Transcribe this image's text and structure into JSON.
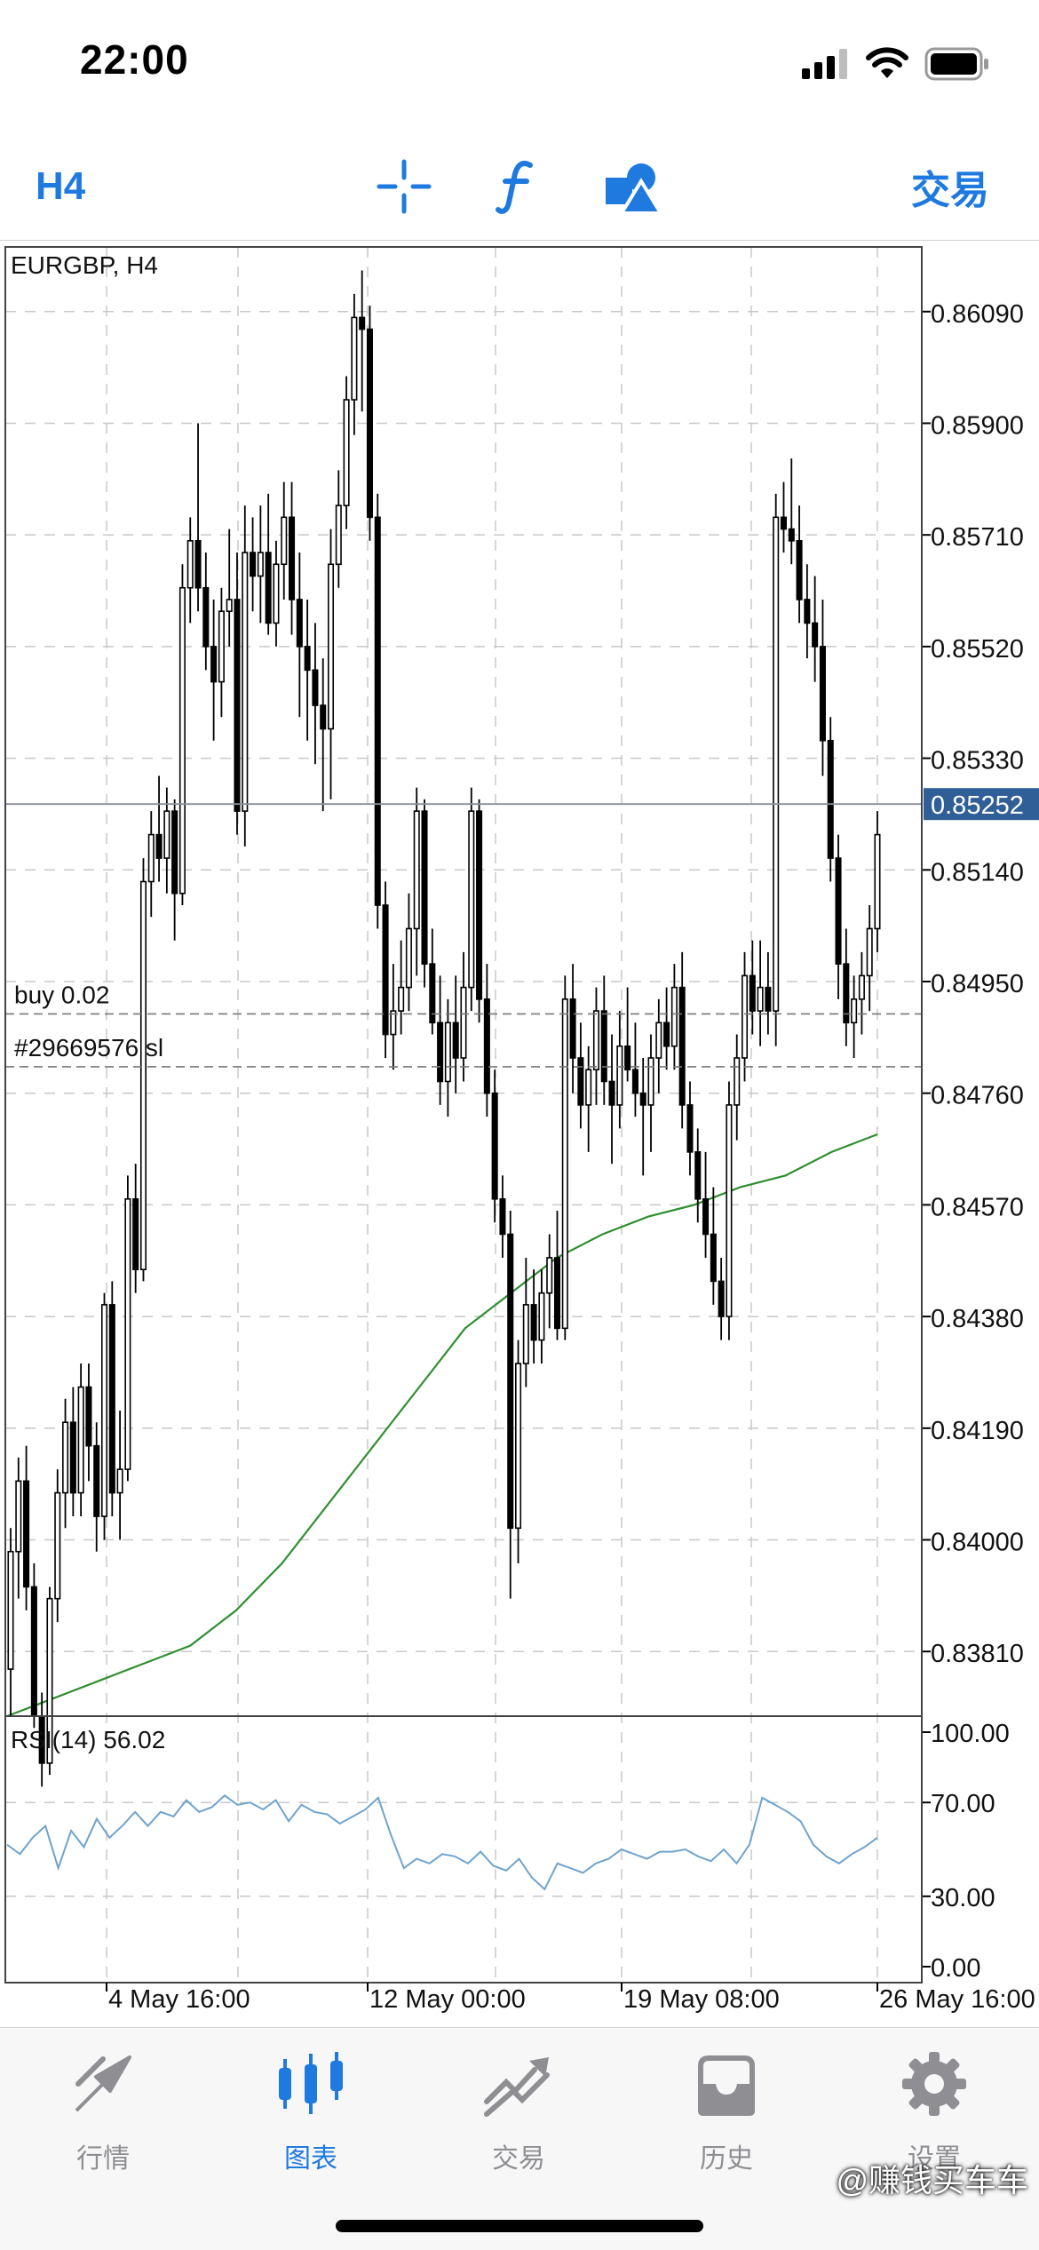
{
  "status_bar": {
    "time": "22:00"
  },
  "toolbar": {
    "timeframe": "H4",
    "trade_label": "交易",
    "icons": [
      "crosshair-icon",
      "function-icon",
      "objects-icon"
    ]
  },
  "chart": {
    "symbol_label": "EURGBP, H4",
    "price_ticks": [
      "0.86090",
      "0.85900",
      "0.85710",
      "0.85520",
      "0.85330",
      "0.85140",
      "0.84950",
      "0.84760",
      "0.84570",
      "0.84380",
      "0.84190",
      "0.84000",
      "0.83810"
    ],
    "current_price": "0.85252",
    "buy_label": "buy 0.02",
    "sl_label": "#29669576 sl",
    "buy_price": 0.84895,
    "sl_price": 0.84805,
    "time_labels": [
      "4 May 16:00",
      "12 May 00:00",
      "19 May 08:00",
      "26 May 16:00"
    ],
    "rsi_label": "RSI(14) 56.02",
    "rsi_ticks": [
      "100.00",
      "70.00",
      "30.00",
      "0.00"
    ],
    "colors": {
      "ma_line": "#2f8f2f",
      "rsi_line": "#6ea3cf",
      "current_price_bg": "#2f5f96",
      "bear_candle": "#000000",
      "bull_candle": "#ffffff",
      "grid": "#c8c8c8"
    }
  },
  "chart_data": {
    "type": "candlestick",
    "symbol": "EURGBP",
    "timeframe": "H4",
    "ohlc": [
      [
        0.8378,
        0.8402,
        0.837,
        0.8398
      ],
      [
        0.8398,
        0.8414,
        0.839,
        0.841
      ],
      [
        0.841,
        0.8416,
        0.8388,
        0.8392
      ],
      [
        0.8392,
        0.8396,
        0.8368,
        0.837
      ],
      [
        0.837,
        0.8374,
        0.8358,
        0.8362
      ],
      [
        0.8362,
        0.8392,
        0.836,
        0.839
      ],
      [
        0.839,
        0.8412,
        0.8386,
        0.8408
      ],
      [
        0.8408,
        0.8424,
        0.8402,
        0.842
      ],
      [
        0.842,
        0.8426,
        0.8404,
        0.8408
      ],
      [
        0.8408,
        0.843,
        0.8404,
        0.8426
      ],
      [
        0.8426,
        0.843,
        0.841,
        0.8416
      ],
      [
        0.8416,
        0.842,
        0.8398,
        0.8404
      ],
      [
        0.8404,
        0.8442,
        0.84,
        0.844
      ],
      [
        0.844,
        0.8444,
        0.8404,
        0.8408
      ],
      [
        0.8408,
        0.8422,
        0.84,
        0.8412
      ],
      [
        0.8412,
        0.8462,
        0.841,
        0.8458
      ],
      [
        0.8458,
        0.8464,
        0.8442,
        0.8446
      ],
      [
        0.8446,
        0.8516,
        0.8444,
        0.8512
      ],
      [
        0.8512,
        0.8524,
        0.8506,
        0.852
      ],
      [
        0.852,
        0.853,
        0.8512,
        0.8516
      ],
      [
        0.8516,
        0.8528,
        0.851,
        0.8524
      ],
      [
        0.8524,
        0.8526,
        0.8502,
        0.851
      ],
      [
        0.851,
        0.8566,
        0.8508,
        0.8562
      ],
      [
        0.8562,
        0.8574,
        0.8556,
        0.857
      ],
      [
        0.857,
        0.859,
        0.8558,
        0.8562
      ],
      [
        0.8562,
        0.8568,
        0.8548,
        0.8552
      ],
      [
        0.8552,
        0.856,
        0.8536,
        0.8546
      ],
      [
        0.8546,
        0.8562,
        0.854,
        0.8558
      ],
      [
        0.8558,
        0.8572,
        0.8552,
        0.856
      ],
      [
        0.856,
        0.8568,
        0.852,
        0.8524
      ],
      [
        0.8524,
        0.8576,
        0.8518,
        0.8568
      ],
      [
        0.8568,
        0.8574,
        0.8558,
        0.8564
      ],
      [
        0.8564,
        0.8576,
        0.8556,
        0.8568
      ],
      [
        0.8568,
        0.8578,
        0.8554,
        0.8556
      ],
      [
        0.8556,
        0.857,
        0.8552,
        0.8566
      ],
      [
        0.8566,
        0.858,
        0.856,
        0.8574
      ],
      [
        0.8574,
        0.858,
        0.8554,
        0.856
      ],
      [
        0.856,
        0.8568,
        0.854,
        0.8552
      ],
      [
        0.8552,
        0.856,
        0.8536,
        0.8548
      ],
      [
        0.8548,
        0.8556,
        0.8532,
        0.8542
      ],
      [
        0.8542,
        0.855,
        0.8524,
        0.8538
      ],
      [
        0.8538,
        0.8572,
        0.8526,
        0.8566
      ],
      [
        0.8566,
        0.8582,
        0.8562,
        0.8576
      ],
      [
        0.8576,
        0.8598,
        0.8572,
        0.8594
      ],
      [
        0.8594,
        0.8612,
        0.8588,
        0.8608
      ],
      [
        0.8608,
        0.8616,
        0.8592,
        0.8606
      ],
      [
        0.8606,
        0.861,
        0.857,
        0.8574
      ],
      [
        0.8574,
        0.8578,
        0.8504,
        0.8508
      ],
      [
        0.8508,
        0.8512,
        0.8482,
        0.8486
      ],
      [
        0.8486,
        0.8498,
        0.848,
        0.849
      ],
      [
        0.849,
        0.8502,
        0.8486,
        0.8494
      ],
      [
        0.8494,
        0.851,
        0.849,
        0.8504
      ],
      [
        0.8504,
        0.8528,
        0.8496,
        0.8524
      ],
      [
        0.8524,
        0.8526,
        0.8494,
        0.8498
      ],
      [
        0.8498,
        0.8504,
        0.8486,
        0.8488
      ],
      [
        0.8488,
        0.8496,
        0.8474,
        0.8478
      ],
      [
        0.8478,
        0.8492,
        0.8472,
        0.8488
      ],
      [
        0.8488,
        0.8496,
        0.8476,
        0.8482
      ],
      [
        0.8482,
        0.85,
        0.8478,
        0.8494
      ],
      [
        0.8494,
        0.8528,
        0.849,
        0.8524
      ],
      [
        0.8524,
        0.8526,
        0.8488,
        0.8492
      ],
      [
        0.8492,
        0.8498,
        0.8472,
        0.8476
      ],
      [
        0.8476,
        0.848,
        0.8454,
        0.8458
      ],
      [
        0.8458,
        0.8462,
        0.8448,
        0.8452
      ],
      [
        0.8452,
        0.8456,
        0.839,
        0.8402
      ],
      [
        0.8402,
        0.8434,
        0.8396,
        0.843
      ],
      [
        0.843,
        0.8448,
        0.8426,
        0.844
      ],
      [
        0.844,
        0.8446,
        0.843,
        0.8434
      ],
      [
        0.8434,
        0.8446,
        0.843,
        0.8442
      ],
      [
        0.8442,
        0.8452,
        0.8436,
        0.8448
      ],
      [
        0.8448,
        0.8456,
        0.8434,
        0.8436
      ],
      [
        0.8436,
        0.8496,
        0.8434,
        0.8492
      ],
      [
        0.8492,
        0.8498,
        0.8476,
        0.8482
      ],
      [
        0.8482,
        0.8488,
        0.847,
        0.8474
      ],
      [
        0.8474,
        0.8484,
        0.8466,
        0.848
      ],
      [
        0.848,
        0.8494,
        0.8474,
        0.849
      ],
      [
        0.849,
        0.8496,
        0.8474,
        0.8478
      ],
      [
        0.8478,
        0.8486,
        0.8464,
        0.8474
      ],
      [
        0.8474,
        0.849,
        0.847,
        0.8484
      ],
      [
        0.8484,
        0.8494,
        0.8478,
        0.848
      ],
      [
        0.848,
        0.8488,
        0.8472,
        0.8476
      ],
      [
        0.8476,
        0.8482,
        0.8462,
        0.8474
      ],
      [
        0.8474,
        0.8486,
        0.8466,
        0.8482
      ],
      [
        0.8482,
        0.8492,
        0.8476,
        0.8488
      ],
      [
        0.8488,
        0.8494,
        0.848,
        0.8484
      ],
      [
        0.8484,
        0.8498,
        0.848,
        0.8494
      ],
      [
        0.8494,
        0.85,
        0.847,
        0.8474
      ],
      [
        0.8474,
        0.8478,
        0.8462,
        0.8466
      ],
      [
        0.8466,
        0.847,
        0.8454,
        0.8458
      ],
      [
        0.8458,
        0.8466,
        0.8448,
        0.8452
      ],
      [
        0.8452,
        0.846,
        0.844,
        0.8444
      ],
      [
        0.8444,
        0.8448,
        0.8434,
        0.8438
      ],
      [
        0.8438,
        0.8478,
        0.8434,
        0.8474
      ],
      [
        0.8474,
        0.8486,
        0.8468,
        0.8482
      ],
      [
        0.8482,
        0.85,
        0.8478,
        0.8496
      ],
      [
        0.8496,
        0.8502,
        0.8486,
        0.849
      ],
      [
        0.849,
        0.8502,
        0.8484,
        0.8494
      ],
      [
        0.8494,
        0.85,
        0.8486,
        0.849
      ],
      [
        0.849,
        0.8578,
        0.8484,
        0.8574
      ],
      [
        0.8574,
        0.858,
        0.8568,
        0.8572
      ],
      [
        0.8572,
        0.8584,
        0.8566,
        0.857
      ],
      [
        0.857,
        0.8576,
        0.8556,
        0.856
      ],
      [
        0.856,
        0.8566,
        0.855,
        0.8556
      ],
      [
        0.8556,
        0.8564,
        0.8546,
        0.8552
      ],
      [
        0.8552,
        0.856,
        0.853,
        0.8536
      ],
      [
        0.8536,
        0.854,
        0.8512,
        0.8516
      ],
      [
        0.8516,
        0.852,
        0.8492,
        0.8498
      ],
      [
        0.8498,
        0.8504,
        0.8484,
        0.8488
      ],
      [
        0.8488,
        0.8496,
        0.8482,
        0.8492
      ],
      [
        0.8492,
        0.85,
        0.8486,
        0.8496
      ],
      [
        0.8496,
        0.8508,
        0.849,
        0.8504
      ],
      [
        0.8504,
        0.8524,
        0.85,
        0.852
      ]
    ],
    "ma": [
      0.837,
      0.8373,
      0.8376,
      0.8379,
      0.8382,
      0.8388,
      0.8396,
      0.8406,
      0.8416,
      0.8426,
      0.8436,
      0.8442,
      0.8448,
      0.8452,
      0.8455,
      0.8457,
      0.846,
      0.8462,
      0.8466,
      0.8469
    ],
    "rsi": [
      52,
      48,
      55,
      60,
      42,
      58,
      51,
      63,
      55,
      60,
      66,
      60,
      66,
      64,
      71,
      66,
      68,
      73,
      69,
      70,
      67,
      71,
      62,
      69,
      66,
      65,
      61,
      64,
      67,
      72,
      56,
      42,
      46,
      44,
      48,
      47,
      44,
      49,
      43,
      41,
      46,
      38,
      33,
      44,
      42,
      40,
      44,
      46,
      50,
      48,
      46,
      49,
      49,
      50,
      47,
      45,
      50,
      44,
      52,
      72,
      69,
      66,
      62,
      52,
      47,
      44,
      48,
      51,
      55
    ],
    "price_ylim": [
      0.837,
      0.862
    ],
    "rsi_ylim": [
      0,
      100
    ],
    "current_price": 0.85252,
    "grid": true
  },
  "tabbar": {
    "items": [
      {
        "label": "行情",
        "icon": "quotes-icon"
      },
      {
        "label": "图表",
        "icon": "chart-icon"
      },
      {
        "label": "交易",
        "icon": "trade-icon"
      },
      {
        "label": "历史",
        "icon": "history-icon"
      },
      {
        "label": "设置",
        "icon": "settings-icon"
      }
    ]
  },
  "watermark": "@赚钱买车车"
}
